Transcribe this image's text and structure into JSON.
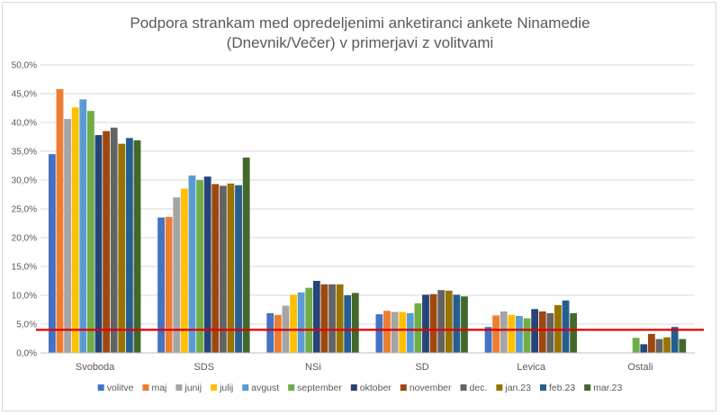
{
  "chart_data": {
    "type": "bar",
    "title": [
      "Podpora strankam med opredeljenimi anketiranci ankete Ninamedie",
      "(Dnevnik/Večer) v primerjavi z volitvami"
    ],
    "xlabel": "",
    "ylabel": "",
    "ylim": [
      0,
      50
    ],
    "y_ticks": [
      "0,0%",
      "5,0%",
      "10,0%",
      "15,0%",
      "20,0%",
      "25,0%",
      "30,0%",
      "35,0%",
      "40,0%",
      "45,0%",
      "50,0%"
    ],
    "grid": true,
    "legend_position": "bottom",
    "categories": [
      "Svoboda",
      "SDS",
      "NSi",
      "SD",
      "Levica",
      "Ostali"
    ],
    "reference_line": {
      "value": 4,
      "color": "#e00000"
    },
    "series": [
      {
        "name": "volitve",
        "color": "#4472c4",
        "values": [
          34.5,
          23.5,
          6.9,
          6.7,
          4.5,
          null
        ]
      },
      {
        "name": "maj",
        "color": "#ed7d31",
        "values": [
          45.8,
          23.6,
          6.6,
          7.3,
          6.5,
          null
        ]
      },
      {
        "name": "junij",
        "color": "#a5a5a5",
        "values": [
          40.6,
          27.0,
          8.2,
          7.1,
          7.2,
          null
        ]
      },
      {
        "name": "julij",
        "color": "#ffc000",
        "values": [
          42.6,
          28.5,
          10.1,
          7.1,
          6.6,
          null
        ]
      },
      {
        "name": "avgust",
        "color": "#5b9bd5",
        "values": [
          44.0,
          30.8,
          10.5,
          6.9,
          6.4,
          null
        ]
      },
      {
        "name": "september",
        "color": "#70ad47",
        "values": [
          42.0,
          30.0,
          11.3,
          8.6,
          6.0,
          2.6
        ]
      },
      {
        "name": "oktober",
        "color": "#264478",
        "values": [
          37.8,
          30.6,
          12.5,
          10.1,
          7.6,
          1.5
        ]
      },
      {
        "name": "november",
        "color": "#9e480e",
        "values": [
          38.5,
          29.3,
          11.9,
          10.2,
          7.2,
          3.3
        ]
      },
      {
        "name": "dec.",
        "color": "#636363",
        "values": [
          39.1,
          29.0,
          11.9,
          10.9,
          6.9,
          2.4
        ]
      },
      {
        "name": "jan.23",
        "color": "#997300",
        "values": [
          36.3,
          29.4,
          11.9,
          10.8,
          8.3,
          2.7
        ]
      },
      {
        "name": "feb.23",
        "color": "#255e91",
        "values": [
          37.3,
          29.1,
          10.0,
          10.1,
          9.1,
          4.5
        ]
      },
      {
        "name": "mar.23",
        "color": "#43682b",
        "values": [
          36.9,
          33.9,
          10.4,
          9.8,
          6.9,
          2.4
        ]
      }
    ]
  }
}
